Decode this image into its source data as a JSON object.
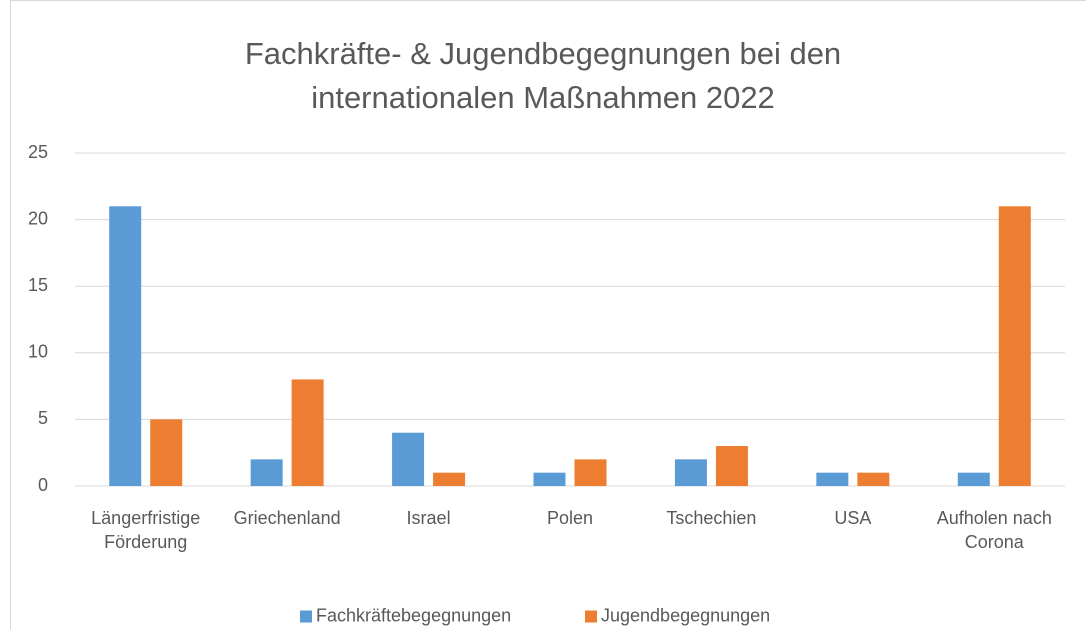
{
  "chart_data": {
    "type": "bar",
    "title": "Fachkräfte- & Jugendbegegnungen bei den internationalen Maßnahmen 2022",
    "categories": [
      "Längerfristige Förderung",
      "Griechenland",
      "Israel",
      "Polen",
      "Tschechien",
      "USA",
      "Aufholen nach Corona"
    ],
    "series": [
      {
        "name": "Fachkräftebegegnungen",
        "color": "#5b9bd5",
        "values": [
          21,
          2,
          4,
          1,
          2,
          1,
          1
        ]
      },
      {
        "name": "Jugendbegegnungen",
        "color": "#ed7d31",
        "values": [
          5,
          8,
          1,
          2,
          3,
          1,
          21
        ]
      }
    ],
    "ylim": [
      0,
      25
    ],
    "yticks": [
      0,
      5,
      10,
      15,
      20,
      25
    ],
    "grid": true,
    "legend": "bottom"
  }
}
